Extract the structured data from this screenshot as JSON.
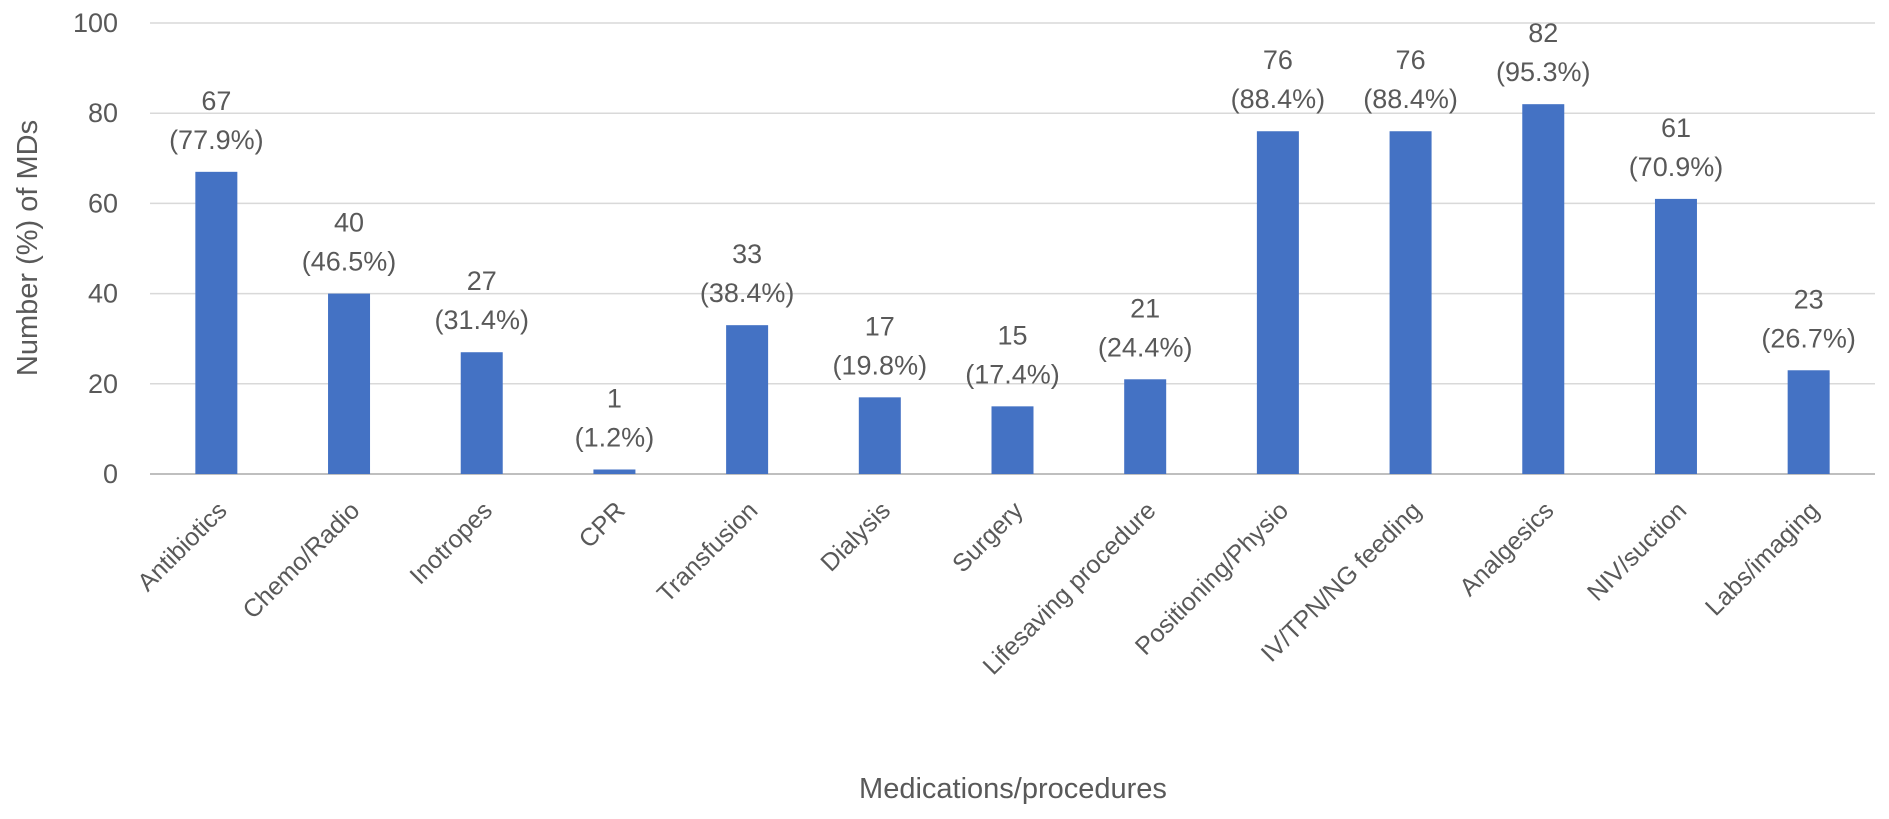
{
  "chart_data": {
    "type": "bar",
    "title": "",
    "xlabel": "Medications/procedures",
    "ylabel": "Number (%) of MDs",
    "ylim": [
      0,
      100
    ],
    "yticks": [
      0,
      20,
      40,
      60,
      80,
      100
    ],
    "grid": true,
    "legend": "none",
    "bar_color": "#4472C4",
    "categories": [
      "Antibiotics",
      "Chemo/Radio",
      "Inotropes",
      "CPR",
      "Transfusion",
      "Dialysis",
      "Surgery",
      "Lifesaving procedure",
      "Positioning/Physio",
      "IV/TPN/NG feeding",
      "Analgesics",
      "NIV/suction",
      "Labs/imaging"
    ],
    "values": [
      67,
      40,
      27,
      1,
      33,
      17,
      15,
      21,
      76,
      76,
      82,
      61,
      23
    ],
    "percent_labels": [
      "(77.9%)",
      "(46.5%)",
      "(31.4%)",
      "(1.2%)",
      "(38.4%)",
      "(19.8%)",
      "(17.4%)",
      "(24.4%)",
      "(88.4%)",
      "(88.4%)",
      "(95.3%)",
      "(70.9%)",
      "(26.7%)"
    ]
  }
}
